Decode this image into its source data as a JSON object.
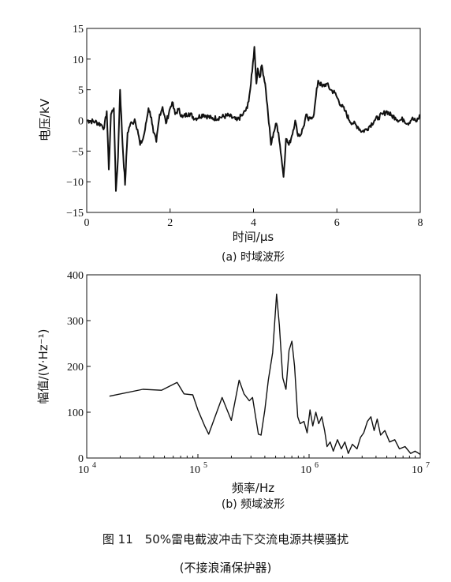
{
  "chart_data": [
    {
      "type": "line",
      "subtitle": "(a) 时域波形",
      "xlabel": "时间/μs",
      "ylabel": "电压/kV",
      "xlim": [
        0,
        8
      ],
      "ylim": [
        -15,
        15
      ],
      "x_ticks": [
        0,
        2,
        4,
        6,
        8
      ],
      "y_ticks": [
        -15,
        -10,
        -5,
        0,
        5,
        10,
        15
      ],
      "x_tick_labels": [
        "0",
        "2",
        "4",
        "6",
        "8"
      ],
      "y_tick_labels": [
        "−15",
        "−10",
        "−5",
        "0",
        "5",
        "10",
        "15"
      ],
      "grid": false,
      "series": [
        {
          "values": [
            [
              0,
              0
            ],
            [
              0.2,
              -0.2
            ],
            [
              0.35,
              -0.7
            ],
            [
              0.42,
              -1.2
            ],
            [
              0.48,
              1.5
            ],
            [
              0.53,
              -8
            ],
            [
              0.58,
              1
            ],
            [
              0.65,
              2
            ],
            [
              0.7,
              -11.5
            ],
            [
              0.75,
              -6
            ],
            [
              0.8,
              5
            ],
            [
              0.86,
              -4
            ],
            [
              0.92,
              -10.5
            ],
            [
              0.98,
              -2
            ],
            [
              1.05,
              -0.5
            ],
            [
              1.1,
              -0.5
            ],
            [
              1.15,
              0.2
            ],
            [
              1.22,
              -1.5
            ],
            [
              1.28,
              -4
            ],
            [
              1.35,
              -3
            ],
            [
              1.4,
              -1.5
            ],
            [
              1.48,
              2
            ],
            [
              1.55,
              0.5
            ],
            [
              1.6,
              -2
            ],
            [
              1.67,
              -3.5
            ],
            [
              1.75,
              1
            ],
            [
              1.82,
              2.2
            ],
            [
              1.9,
              -0.5
            ],
            [
              2,
              2
            ],
            [
              2.05,
              3
            ],
            [
              2.12,
              1
            ],
            [
              2.2,
              1.8
            ],
            [
              2.3,
              0.5
            ],
            [
              2.45,
              1.2
            ],
            [
              2.6,
              0.3
            ],
            [
              2.8,
              1
            ],
            [
              3,
              0.3
            ],
            [
              3.2,
              0.5
            ],
            [
              3.4,
              0.8
            ],
            [
              3.6,
              0
            ],
            [
              3.75,
              1
            ],
            [
              3.85,
              2
            ],
            [
              3.92,
              5
            ],
            [
              3.97,
              8
            ],
            [
              4.02,
              12
            ],
            [
              4.07,
              6
            ],
            [
              4.1,
              8.5
            ],
            [
              4.15,
              7
            ],
            [
              4.2,
              9
            ],
            [
              4.28,
              6
            ],
            [
              4.35,
              1
            ],
            [
              4.42,
              -4
            ],
            [
              4.48,
              -2
            ],
            [
              4.55,
              -0.5
            ],
            [
              4.6,
              -2
            ],
            [
              4.67,
              -6
            ],
            [
              4.72,
              -9.2
            ],
            [
              4.78,
              -3
            ],
            [
              4.85,
              -4
            ],
            [
              4.92,
              -2.5
            ],
            [
              5,
              0
            ],
            [
              5.05,
              -2
            ],
            [
              5.12,
              -2.5
            ],
            [
              5.2,
              -1
            ],
            [
              5.28,
              1
            ],
            [
              5.32,
              0
            ],
            [
              5.38,
              0.5
            ],
            [
              5.45,
              1
            ],
            [
              5.5,
              4
            ],
            [
              5.55,
              6.5
            ],
            [
              5.65,
              5.5
            ],
            [
              5.75,
              6
            ],
            [
              5.85,
              5
            ],
            [
              5.95,
              4.5
            ],
            [
              6,
              3.8
            ],
            [
              6.1,
              2.5
            ],
            [
              6.2,
              1.5
            ],
            [
              6.3,
              0
            ],
            [
              6.4,
              -0.5
            ],
            [
              6.5,
              -1
            ],
            [
              6.6,
              -1.8
            ],
            [
              6.7,
              -1.5
            ],
            [
              6.8,
              -0.8
            ],
            [
              6.9,
              0
            ],
            [
              7,
              0.5
            ],
            [
              7.1,
              1
            ],
            [
              7.2,
              1.5
            ],
            [
              7.3,
              0.8
            ],
            [
              7.4,
              0.5
            ],
            [
              7.5,
              0
            ],
            [
              7.6,
              0.2
            ],
            [
              7.7,
              -0.5
            ],
            [
              7.8,
              0.3
            ],
            [
              7.9,
              -0.2
            ],
            [
              8,
              0.8
            ]
          ]
        }
      ]
    },
    {
      "type": "line",
      "subtitle": "(b) 频域波形",
      "xlabel": "频率/Hz",
      "ylabel": "幅值/(V·Hz⁻¹)",
      "xscale": "log",
      "xlim": [
        10000,
        10000000
      ],
      "ylim": [
        0,
        400
      ],
      "x_ticks": [
        10000,
        100000,
        1000000,
        10000000
      ],
      "y_ticks": [
        0,
        100,
        200,
        300,
        400
      ],
      "x_tick_labels": [
        {
          "base": "10",
          "exp": "4"
        },
        {
          "base": "10",
          "exp": "5"
        },
        {
          "base": "10",
          "exp": "6"
        },
        {
          "base": "10",
          "exp": "7"
        }
      ],
      "y_tick_labels": [
        "0",
        "100",
        "200",
        "300",
        "400"
      ],
      "grid": false,
      "series": [
        {
          "values": [
            [
              16000,
              135
            ],
            [
              32000,
              150
            ],
            [
              47000,
              148
            ],
            [
              65000,
              165
            ],
            [
              75000,
              140
            ],
            [
              90000,
              138
            ],
            [
              100000,
              105
            ],
            [
              115000,
              70
            ],
            [
              125000,
              52
            ],
            [
              145000,
              95
            ],
            [
              165000,
              132
            ],
            [
              200000,
              82
            ],
            [
              235000,
              170
            ],
            [
              260000,
              140
            ],
            [
              290000,
              125
            ],
            [
              310000,
              132
            ],
            [
              350000,
              52
            ],
            [
              370000,
              50
            ],
            [
              400000,
              105
            ],
            [
              430000,
              170
            ],
            [
              470000,
              230
            ],
            [
              510000,
              358
            ],
            [
              540000,
              290
            ],
            [
              580000,
              175
            ],
            [
              620000,
              150
            ],
            [
              660000,
              235
            ],
            [
              700000,
              255
            ],
            [
              740000,
              200
            ],
            [
              790000,
              90
            ],
            [
              830000,
              75
            ],
            [
              900000,
              80
            ],
            [
              960000,
              55
            ],
            [
              1020000,
              105
            ],
            [
              1080000,
              70
            ],
            [
              1150000,
              100
            ],
            [
              1220000,
              75
            ],
            [
              1300000,
              90
            ],
            [
              1380000,
              60
            ],
            [
              1450000,
              25
            ],
            [
              1550000,
              35
            ],
            [
              1650000,
              15
            ],
            [
              1800000,
              40
            ],
            [
              1950000,
              20
            ],
            [
              2100000,
              35
            ],
            [
              2250000,
              10
            ],
            [
              2450000,
              30
            ],
            [
              2700000,
              20
            ],
            [
              2900000,
              45
            ],
            [
              3100000,
              55
            ],
            [
              3350000,
              80
            ],
            [
              3600000,
              90
            ],
            [
              3850000,
              60
            ],
            [
              4100000,
              85
            ],
            [
              4400000,
              50
            ],
            [
              4800000,
              60
            ],
            [
              5300000,
              35
            ],
            [
              5900000,
              40
            ],
            [
              6500000,
              20
            ],
            [
              7300000,
              25
            ],
            [
              8200000,
              10
            ],
            [
              9000000,
              15
            ],
            [
              10000000,
              8
            ]
          ]
        }
      ]
    }
  ],
  "caption": {
    "line1": "图 11　50%雷电截波冲击下交流电源共模骚扰",
    "line2": "(不接浪涌保护器)"
  }
}
